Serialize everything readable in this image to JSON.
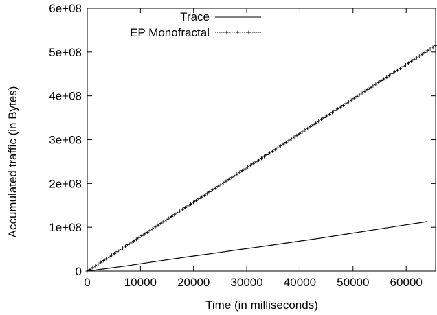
{
  "chart_data": {
    "type": "line",
    "title": "",
    "xlabel": "Time (in milliseconds)",
    "ylabel": "Accumulated traffic (in Bytes)",
    "xlim": [
      0,
      65536
    ],
    "ylim": [
      0,
      600000000
    ],
    "xticks": [
      0,
      10000,
      20000,
      30000,
      40000,
      50000,
      60000
    ],
    "xtick_labels": [
      "0",
      "10000",
      "20000",
      "30000",
      "40000",
      "50000",
      "60000"
    ],
    "yticks": [
      0,
      100000000,
      200000000,
      300000000,
      400000000,
      500000000,
      600000000
    ],
    "ytick_labels": [
      "0",
      "1e+08",
      "2e+08",
      "3e+08",
      "4e+08",
      "5e+08",
      "6e+08"
    ],
    "grid": false,
    "legend_position": "top-center",
    "series": [
      {
        "name": "Trace",
        "style": "solid",
        "color": "#000000",
        "x": [
          0,
          4000,
          8000,
          12000,
          16000,
          20000,
          24000,
          28000,
          32000,
          36000,
          40000,
          44000,
          48000,
          52000,
          56000,
          60000,
          64000
        ],
        "y": [
          0,
          6500000,
          13000000,
          20500000,
          27500000,
          34500000,
          41000000,
          48000000,
          54500000,
          61500000,
          68500000,
          75500000,
          83000000,
          90500000,
          98000000,
          105500000,
          113000000
        ]
      },
      {
        "name": "EP Monofractal",
        "style": "dotted-plus",
        "color": "#000000",
        "x": [
          0,
          65536
        ],
        "y": [
          0,
          515000000
        ],
        "marker_step": 512
      }
    ]
  }
}
